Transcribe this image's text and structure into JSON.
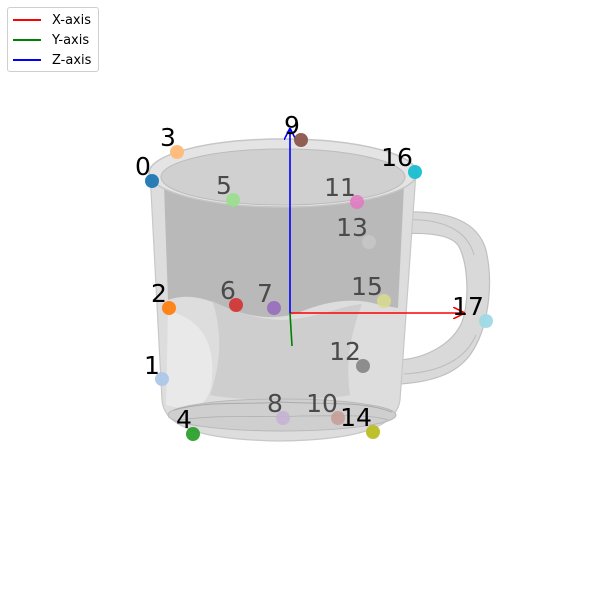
{
  "legend": {
    "items": [
      {
        "label": "X-axis",
        "color": "#ff0000"
      },
      {
        "label": "Y-axis",
        "color": "#008000"
      },
      {
        "label": "Z-axis",
        "color": "#0000ff"
      }
    ]
  },
  "colors": {
    "mug_fill": "#dcdcdc",
    "mug_stroke": "#c4c4c4",
    "mug_inner": "#a9a9a9"
  },
  "keypoints": [
    {
      "id": "0",
      "color": "#1f77b4",
      "occluded": false
    },
    {
      "id": "1",
      "color": "#aec7e8",
      "occluded": false
    },
    {
      "id": "2",
      "color": "#ff7f0e",
      "occluded": false
    },
    {
      "id": "3",
      "color": "#ffbb78",
      "occluded": false
    },
    {
      "id": "4",
      "color": "#2ca02c",
      "occluded": false
    },
    {
      "id": "5",
      "color": "#98df8a",
      "occluded": true
    },
    {
      "id": "6",
      "color": "#d62728",
      "occluded": true
    },
    {
      "id": "7",
      "color": "#9467bd",
      "occluded": true
    },
    {
      "id": "8",
      "color": "#c5b0d5",
      "occluded": true
    },
    {
      "id": "9",
      "color": "#8c564b",
      "occluded": false
    },
    {
      "id": "10",
      "color": "#c49c94",
      "occluded": true
    },
    {
      "id": "11",
      "color": "#e377c2",
      "occluded": true
    },
    {
      "id": "12",
      "color": "#7f7f7f",
      "occluded": true
    },
    {
      "id": "13",
      "color": "#c7c7c7",
      "occluded": true
    },
    {
      "id": "14",
      "color": "#bcbd22",
      "occluded": false
    },
    {
      "id": "15",
      "color": "#dbdb8d",
      "occluded": true
    },
    {
      "id": "16",
      "color": "#17becf",
      "occluded": false
    },
    {
      "id": "17",
      "color": "#9edae5",
      "occluded": false
    }
  ]
}
